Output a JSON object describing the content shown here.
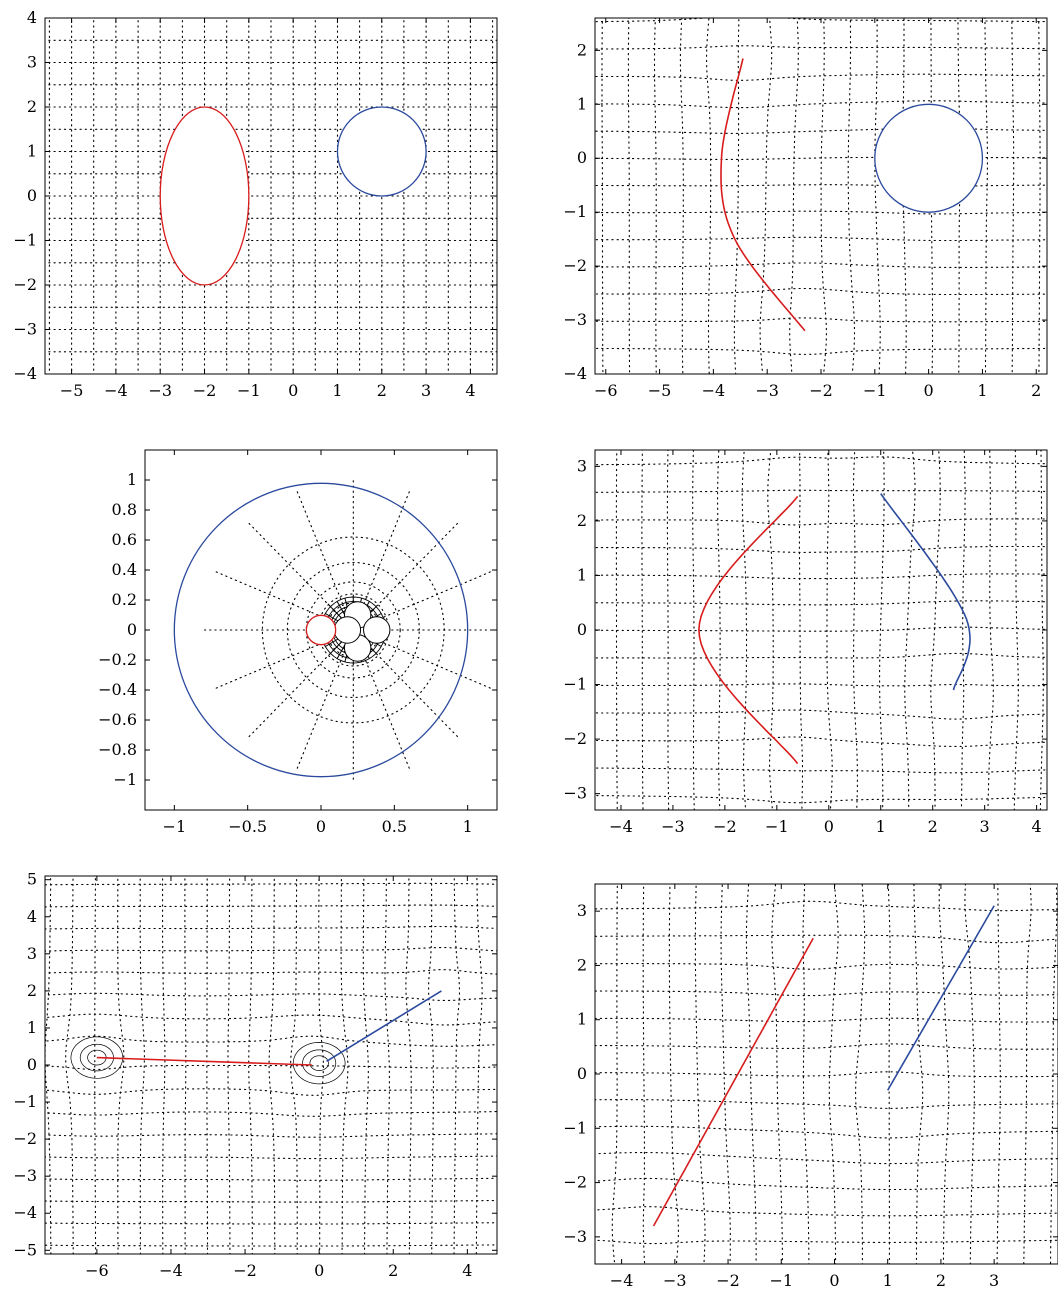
{
  "chart_data": [
    {
      "type": "line",
      "title": "",
      "xlim": [
        -5.6,
        4.6
      ],
      "ylim": [
        -4,
        4
      ],
      "xticks": [
        "-5",
        "-4",
        "-3",
        "-2",
        "-1",
        "0",
        "1",
        "2",
        "3",
        "4"
      ],
      "yticks": [
        "-4",
        "-3",
        "-2",
        "-1",
        "0",
        "1",
        "2",
        "3",
        "4"
      ],
      "grid": "dotted",
      "series": [
        {
          "kind": "ellipse",
          "color": "#d81b1b",
          "cx": -2,
          "cy": 0,
          "rx": 1,
          "ry": 2
        },
        {
          "kind": "circle",
          "color": "#2b4a9e",
          "cx": 2,
          "cy": 1,
          "r": 1
        }
      ]
    },
    {
      "type": "line",
      "title": "",
      "xlim": [
        -6.2,
        2.2
      ],
      "ylim": [
        -4,
        2.6
      ],
      "xticks": [
        "-6",
        "-5",
        "-4",
        "-3",
        "-2",
        "-1",
        "0",
        "1",
        "2"
      ],
      "yticks": [
        "-4",
        "-3",
        "-2",
        "-1",
        "0",
        "1",
        "2"
      ],
      "grid": "dotted-curvilinear",
      "series": [
        {
          "kind": "arc",
          "color": "#d81b1b",
          "points": [
            [
              -3.45,
              1.85
            ],
            [
              -3.85,
              0
            ],
            [
              -3.6,
              -1.5
            ],
            [
              -2.3,
              -3.2
            ]
          ]
        },
        {
          "kind": "circle",
          "color": "#2b4a9e",
          "cx": 0,
          "cy": 0,
          "r": 1
        }
      ]
    },
    {
      "type": "line",
      "title": "",
      "xlim": [
        -1.2,
        1.2
      ],
      "ylim": [
        -1.2,
        1.2
      ],
      "xticks": [
        "-1",
        "-0.5",
        "0",
        "0.5",
        "1"
      ],
      "yticks": [
        "-1",
        "-0.8",
        "-0.6",
        "-0.4",
        "-0.2",
        "0",
        "0.2",
        "0.4",
        "0.6",
        "0.8",
        "1"
      ],
      "grid": "polar-dotted",
      "series": [
        {
          "kind": "circle",
          "color": "#2b4a9e",
          "cx": 0,
          "cy": 0,
          "r": 1
        },
        {
          "kind": "circle",
          "color": "#d81b1b",
          "cx": 0,
          "cy": 0,
          "r": 0.1
        }
      ]
    },
    {
      "type": "line",
      "title": "",
      "xlim": [
        -4.5,
        4.2
      ],
      "ylim": [
        -3.3,
        3.3
      ],
      "xticks": [
        "-4",
        "-3",
        "-2",
        "-1",
        "0",
        "1",
        "2",
        "3",
        "4"
      ],
      "yticks": [
        "-3",
        "-2",
        "-1",
        "0",
        "1",
        "2",
        "3"
      ],
      "grid": "dotted-curvilinear",
      "series": [
        {
          "kind": "arc",
          "color": "#d81b1b",
          "points": [
            [
              -0.6,
              2.45
            ],
            [
              -2.5,
              0
            ],
            [
              -0.6,
              -2.45
            ]
          ]
        },
        {
          "kind": "arc",
          "color": "#2b4a9e",
          "points": [
            [
              1,
              2.5
            ],
            [
              2.65,
              0.2
            ],
            [
              2.4,
              -1.1
            ]
          ]
        }
      ]
    },
    {
      "type": "line",
      "title": "",
      "xlim": [
        -7.4,
        4.8
      ],
      "ylim": [
        -5.1,
        5.1
      ],
      "xticks": [
        "-6",
        "-4",
        "-2",
        "0",
        "2",
        "4"
      ],
      "yticks": [
        "-5",
        "-4",
        "-3",
        "-2",
        "-1",
        "0",
        "1",
        "2",
        "3",
        "4",
        "5"
      ],
      "grid": "dotted-curvilinear",
      "series": [
        {
          "kind": "segment",
          "color": "#d81b1b",
          "points": [
            [
              -6,
              0.2
            ],
            [
              -0.2,
              0
            ]
          ]
        },
        {
          "kind": "segment",
          "color": "#2b4a9e",
          "points": [
            [
              0.2,
              0.1
            ],
            [
              3.3,
              2
            ]
          ]
        }
      ]
    },
    {
      "type": "line",
      "title": "",
      "xlim": [
        -4.5,
        4.2
      ],
      "ylim": [
        -3.5,
        3.5
      ],
      "xticks": [
        "-4",
        "-3",
        "-2",
        "-1",
        "0",
        "1",
        "2",
        "3"
      ],
      "yticks": [
        "-3",
        "-2",
        "-1",
        "0",
        "1",
        "2",
        "3"
      ],
      "grid": "dotted-curvilinear",
      "series": [
        {
          "kind": "segment",
          "color": "#d81b1b",
          "points": [
            [
              -3.4,
              -2.8
            ],
            [
              -0.4,
              2.5
            ]
          ]
        },
        {
          "kind": "segment",
          "color": "#2b4a9e",
          "points": [
            [
              1,
              -0.3
            ],
            [
              3,
              3.1
            ]
          ]
        }
      ]
    }
  ]
}
